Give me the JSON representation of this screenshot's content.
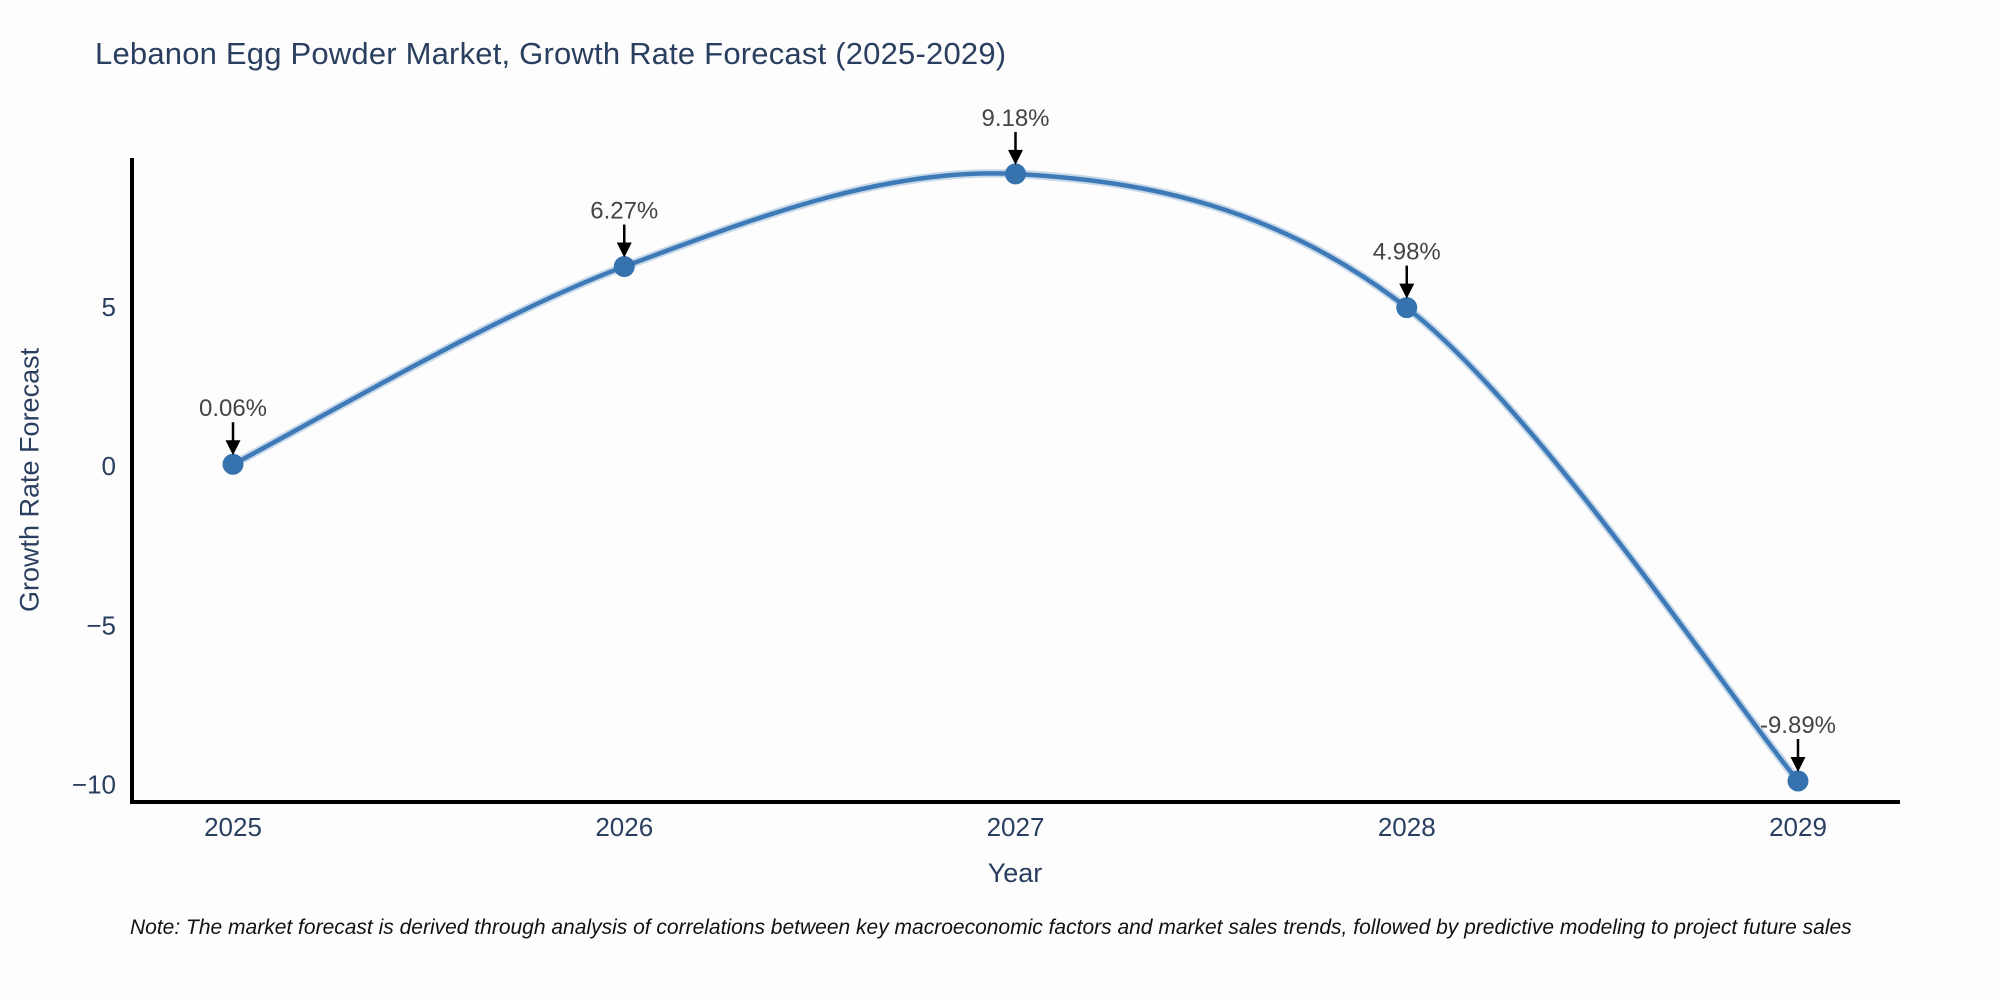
{
  "title": "Lebanon Egg Powder Market, Growth Rate Forecast (2025-2029)",
  "note": "Note: The market forecast is derived through analysis of correlations between key macroeconomic factors and market sales trends, followed by predictive modeling to project future sales",
  "chart_data": {
    "type": "line",
    "title": "Lebanon Egg Powder Market, Growth Rate Forecast (2025-2029)",
    "xlabel": "Year",
    "ylabel": "Growth Rate Forecast",
    "categories": [
      "2025",
      "2026",
      "2027",
      "2028",
      "2029"
    ],
    "series": [
      {
        "name": "Growth Rate Forecast",
        "values": [
          0.06,
          6.27,
          9.18,
          4.98,
          -9.89
        ],
        "point_labels": [
          "0.06%",
          "6.27%",
          "9.18%",
          "4.98%",
          "-9.89%"
        ]
      }
    ],
    "yticks": [
      5,
      0,
      -5,
      -10
    ],
    "ylim": [
      -10.55,
      9.68
    ],
    "grid": false,
    "legend_position": "none",
    "line_shape": "spline",
    "annotations": "value labels with down arrows above each point",
    "colors": {
      "line": "#3d7ab7",
      "line_halo": "rgba(61,122,183,0.28)",
      "marker": "#3572ae",
      "axis": "#000000",
      "tick_text": "#2a3f5f",
      "annotation_text": "#444444",
      "arrow": "#000000",
      "background": "#fdfdfd"
    }
  }
}
